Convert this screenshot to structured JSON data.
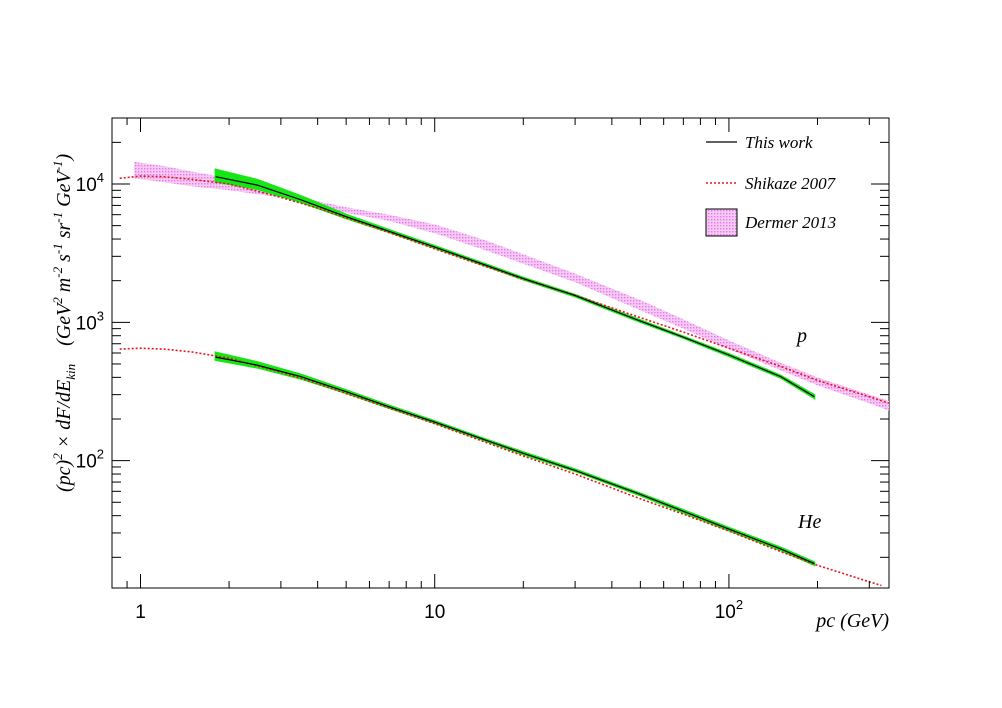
{
  "chart_data": {
    "type": "line",
    "xscale": "log",
    "yscale": "log",
    "xlim": [
      0.8,
      350
    ],
    "ylim": [
      12,
      30000
    ],
    "xlabel": "pc (GeV)",
    "ylabel": "(pc)² × dF/dE_kin   (GeV² m⁻² s⁻¹ sr⁻¹ GeV⁻¹)",
    "ylabel_parts": {
      "pc": "(pc)",
      "exp2": "2",
      "times_dF": " × dF/dE",
      "kin": "kin",
      "units_open": "(GeV",
      "m": " m",
      "m_exp": "-2",
      "s": " s",
      "s_exp": "-1",
      "sr": " sr",
      "sr_exp": "-1",
      "gev": " GeV",
      "gev_exp": "-1",
      "units_close": ")"
    },
    "x_ticks": [
      {
        "value": 1,
        "base": "1",
        "exp": ""
      },
      {
        "value": 10,
        "base": "10",
        "exp": ""
      },
      {
        "value": 100,
        "base": "10",
        "exp": "2"
      }
    ],
    "y_ticks": [
      {
        "value": 100,
        "base": "10",
        "exp": "2"
      },
      {
        "value": 1000,
        "base": "10",
        "exp": "3"
      },
      {
        "value": 10000,
        "base": "10",
        "exp": "4"
      }
    ],
    "legend": {
      "placement": "top-right",
      "entries": [
        {
          "label": "This work",
          "style": "solid-line",
          "color": "#000000"
        },
        {
          "label": "Shikaze 2007",
          "style": "dotted-line",
          "color": "#e8141e"
        },
        {
          "label": "Dermer 2013",
          "style": "hatched-box",
          "color": "#e27be8"
        }
      ]
    },
    "annotations": [
      {
        "text": "p",
        "x": 150,
        "y": 850
      },
      {
        "text": "He",
        "x": 150,
        "y": 26
      }
    ],
    "series": [
      {
        "name": "This work",
        "group": "p",
        "color": "#000000",
        "band_color": "#16e616",
        "x": [
          1.8,
          2.5,
          3.5,
          5,
          7,
          10,
          15,
          20,
          30,
          50,
          70,
          100,
          150,
          195
        ],
        "y": [
          11300,
          9800,
          7700,
          5800,
          4550,
          3500,
          2580,
          2070,
          1560,
          1020,
          780,
          580,
          405,
          290
        ],
        "band_upper": [
          12700,
          10700,
          8200,
          6000,
          4650,
          3560,
          2620,
          2100,
          1580,
          1035,
          790,
          590,
          412,
          298
        ],
        "band_lower": [
          10400,
          9200,
          7400,
          5650,
          4480,
          3450,
          2540,
          2040,
          1540,
          1005,
          770,
          570,
          398,
          283
        ]
      },
      {
        "name": "This work",
        "group": "He",
        "color": "#000000",
        "band_color": "#16e616",
        "x": [
          1.8,
          2.5,
          3.5,
          5,
          7,
          10,
          15,
          20,
          30,
          50,
          70,
          100,
          150,
          195
        ],
        "y": [
          560,
          490,
          405,
          315,
          245,
          190,
          140,
          113,
          85,
          57,
          43,
          32,
          23,
          18
        ],
        "band_upper": [
          605,
          515,
          420,
          323,
          250,
          193,
          142,
          115,
          86.5,
          58,
          44,
          32.7,
          23.5,
          18.4
        ],
        "band_lower": [
          535,
          470,
          392,
          308,
          240,
          187,
          138,
          111,
          84,
          56,
          42,
          31.3,
          22.5,
          17.6
        ]
      },
      {
        "name": "Shikaze 2007",
        "group": "p",
        "color": "#e8141e",
        "x": [
          0.85,
          1,
          1.2,
          1.5,
          2,
          3,
          4,
          5,
          7,
          10,
          15,
          20,
          30,
          50,
          70,
          100,
          150,
          200,
          300,
          350
        ],
        "y": [
          11000,
          11400,
          11300,
          10800,
          10000,
          8000,
          6700,
          5700,
          4450,
          3400,
          2520,
          2050,
          1570,
          1080,
          850,
          650,
          480,
          380,
          290,
          260
        ]
      },
      {
        "name": "Shikaze 2007",
        "group": "He",
        "color": "#e8141e",
        "x": [
          0.85,
          1,
          1.2,
          1.5,
          2,
          3,
          4,
          5,
          7,
          10,
          15,
          20,
          30,
          50,
          70,
          100,
          150,
          200,
          300,
          330
        ],
        "y": [
          640,
          650,
          640,
          610,
          550,
          435,
          360,
          305,
          240,
          185,
          135,
          108,
          80,
          53,
          41,
          31,
          22,
          17.5,
          13.3,
          12.5
        ]
      },
      {
        "name": "Dermer 2013",
        "group": "p",
        "color": "#e27be8",
        "x": [
          0.95,
          1.2,
          1.5,
          2,
          3,
          4,
          5,
          7,
          10,
          15,
          20,
          30,
          50,
          70,
          100,
          150,
          200,
          300,
          350
        ],
        "y_upper": [
          14500,
          13500,
          12300,
          11000,
          8800,
          7500,
          6800,
          6000,
          5100,
          3900,
          3100,
          2250,
          1450,
          1050,
          740,
          510,
          400,
          300,
          270
        ],
        "y_lower": [
          11000,
          10300,
          9600,
          9000,
          8000,
          6900,
          6200,
          5400,
          4400,
          3300,
          2650,
          1950,
          1220,
          900,
          640,
          450,
          350,
          260,
          230
        ]
      }
    ]
  }
}
